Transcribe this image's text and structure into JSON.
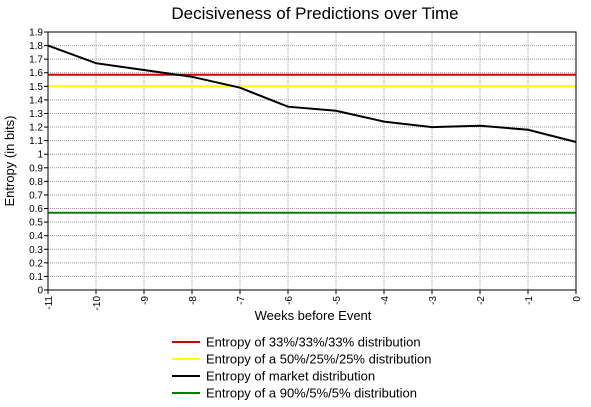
{
  "chart_data": {
    "type": "line",
    "title": "Decisiveness of Predictions over Time",
    "xlabel": "Weeks before Event",
    "ylabel": "Entropy (in bits)",
    "xlim": [
      -11,
      0
    ],
    "ylim": [
      0,
      1.9
    ],
    "grid": true,
    "legend_position": "bottom",
    "x_ticks": [
      "-11",
      "-10",
      "-9",
      "-8",
      "-7",
      "-6",
      "-5",
      "-4",
      "-3",
      "-2",
      "-1",
      "0"
    ],
    "y_ticks": [
      "0",
      "0.1",
      "0.2",
      "0.3",
      "0.4",
      "0.5",
      "0.6",
      "0.7",
      "0.8",
      "0.9",
      "1",
      "1.1",
      "1.2",
      "1.3",
      "1.4",
      "1.5",
      "1.6",
      "1.7",
      "1.8",
      "1.9"
    ],
    "series": [
      {
        "name": "Entropy of 33%/33%/33% distribution",
        "color": "#cc0000",
        "x": [
          -11,
          0
        ],
        "y": [
          1.585,
          1.585
        ]
      },
      {
        "name": "Entropy of a 50%/25%/25% distribution",
        "color": "#ffff00",
        "x": [
          -11,
          0
        ],
        "y": [
          1.5,
          1.5
        ]
      },
      {
        "name": "Entropy of market distribution",
        "color": "#000000",
        "x": [
          -11,
          -10,
          -9,
          -8,
          -7,
          -6,
          -5,
          -4,
          -3,
          -2,
          -1,
          0
        ],
        "y": [
          1.8,
          1.67,
          1.62,
          1.57,
          1.49,
          1.35,
          1.32,
          1.24,
          1.2,
          1.21,
          1.18,
          1.09
        ]
      },
      {
        "name": "Entropy of a 90%/5%/5% distribution",
        "color": "#008000",
        "x": [
          -11,
          0
        ],
        "y": [
          0.569,
          0.569
        ]
      }
    ]
  }
}
